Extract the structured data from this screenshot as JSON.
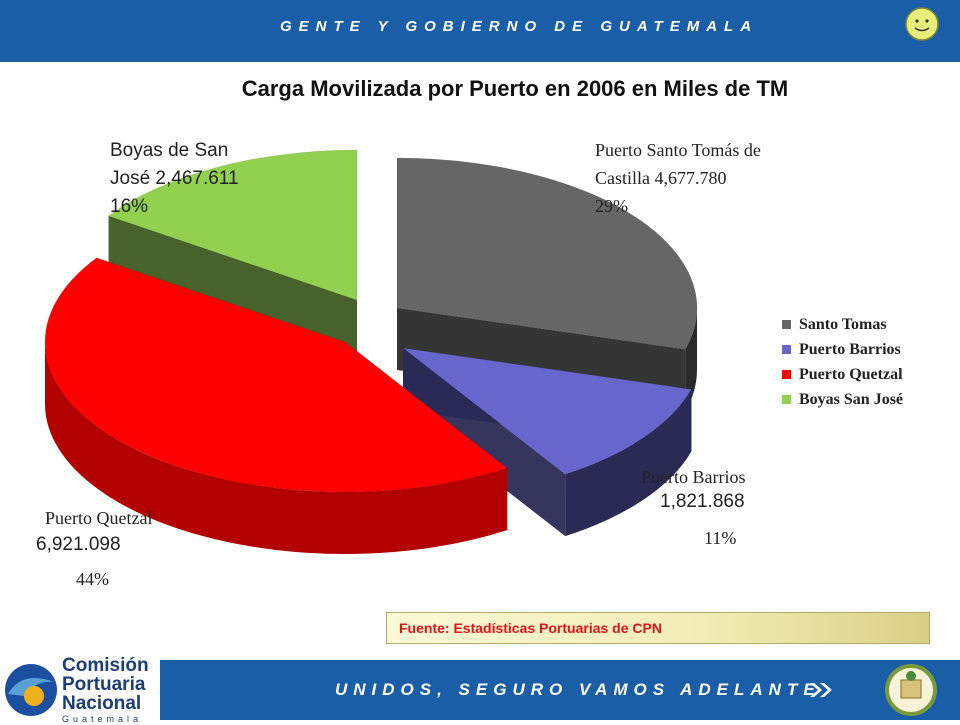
{
  "header": {
    "slogan": "GENTE Y GOBIERNO DE GUATEMALA"
  },
  "chart_data": {
    "type": "pie",
    "title": "Carga Movilizada por Puerto en 2006 en Miles de TM",
    "slices": [
      {
        "name": "Santo Tomas",
        "label": "Puerto Santo Tomás de Castilla",
        "value": 4677.78,
        "value_text": "4,677.780",
        "percent": "29%",
        "color": "#666666",
        "side_color": "#2a2a2a"
      },
      {
        "name": "Puerto Barrios",
        "label": "Puerto Barrios",
        "value": 1821.868,
        "value_text": "1,821.868",
        "percent": "11%",
        "color": "#6666cc",
        "side_color": "#2a2a55"
      },
      {
        "name": "Puerto Quetzal",
        "label": "Puerto Quetzal",
        "value": 6921.098,
        "value_text": "6,921.098",
        "percent": "44%",
        "color": "#ff0000",
        "side_color": "#b30000"
      },
      {
        "name": "Boyas San José",
        "label": "Boyas de San José",
        "value": 2467.611,
        "value_text": "2,467.611",
        "percent": "16%",
        "color": "#92d050",
        "side_color": "#3d5a1f"
      }
    ],
    "legend_position": "right"
  },
  "labels": {
    "santo_tomas_line1": "Puerto Santo Tomás de",
    "santo_tomas_line2": "Castilla 4,677.780",
    "santo_tomas_pct": "29%",
    "barrios_line1": "Puerto Barrios",
    "barrios_value": "1,821.868",
    "barrios_pct": "11%",
    "quetzal_line1": "Puerto Quetzal",
    "quetzal_value": "6,921.098",
    "quetzal_pct": "44%",
    "boyas_line1": "Boyas de San",
    "boyas_line2": "José 2,467.611",
    "boyas_pct": "16%"
  },
  "source": "Fuente: Estadísticas Portuarias de CPN",
  "footer": {
    "motto": "UNIDOS, SEGURO VAMOS ADELANTE",
    "logo_line1": "Comisión",
    "logo_line2": "Portuaria",
    "logo_line3": "Nacional",
    "logo_line4": "Guatemala"
  }
}
